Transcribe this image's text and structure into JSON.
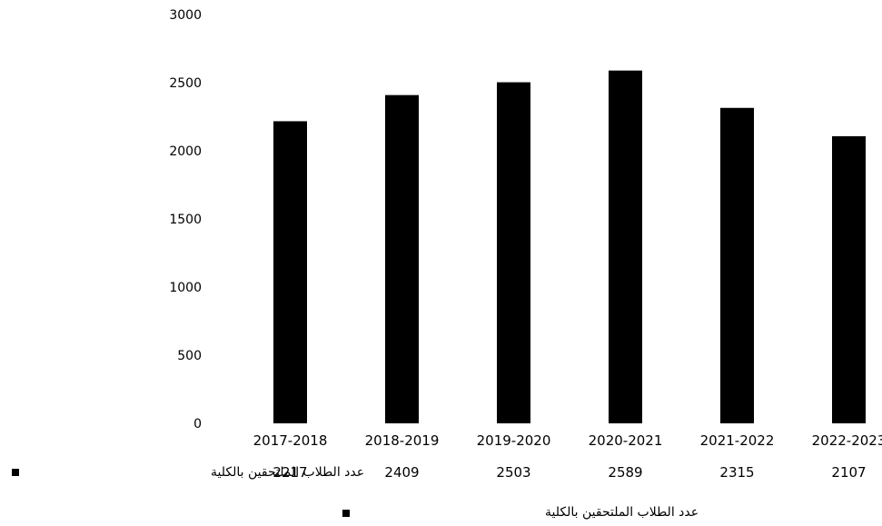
{
  "chart_data": {
    "type": "bar",
    "categories": [
      "2017-2018",
      "2018-2019",
      "2019-2020",
      "2020-2021",
      "2021-2022",
      "2022-2023"
    ],
    "series": [
      {
        "name": "عدد الطلاب الملتحقين بالكلية",
        "values": [
          2217,
          2409,
          2503,
          2589,
          2315,
          2107
        ]
      }
    ],
    "ylim": [
      0,
      3000
    ],
    "yticks": [
      0,
      500,
      1000,
      1500,
      2000,
      2500,
      3000
    ],
    "title": "",
    "xlabel": "",
    "ylabel": "",
    "grid": false,
    "data_table": true,
    "legend_position": "bottom",
    "bar_color": "#000000"
  }
}
